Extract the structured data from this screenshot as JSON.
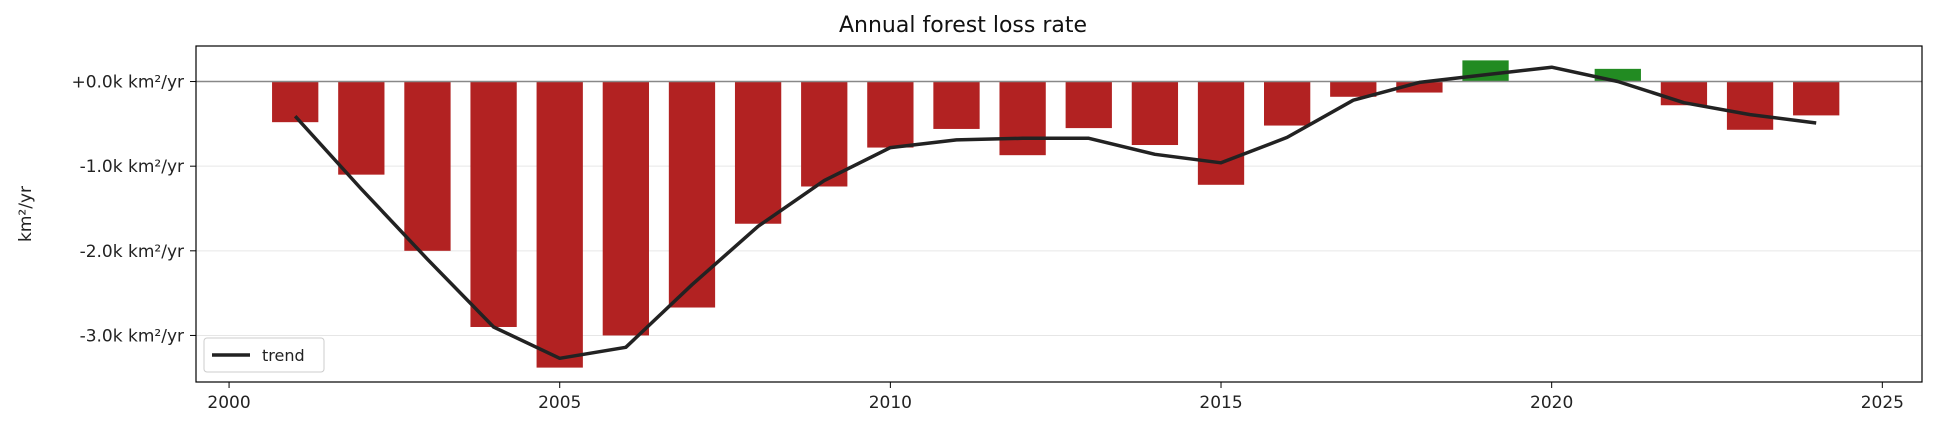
{
  "chart_data": {
    "type": "bar",
    "title": "Annual forest loss rate",
    "xlabel": "",
    "ylabel": "km²/yr",
    "xlim": [
      1999.5,
      2025.6
    ],
    "ylim": [
      -3.55,
      0.42
    ],
    "grid": true,
    "legend_placement": "bottom-left",
    "x_ticks": [
      2000,
      2005,
      2010,
      2015,
      2020,
      2025
    ],
    "y_ticks": [
      {
        "value": 0,
        "label": "+0.0k km²/yr"
      },
      {
        "value": -1,
        "label": "-1.0k km²/yr"
      },
      {
        "value": -2,
        "label": "-2.0k km²/yr"
      },
      {
        "value": -3,
        "label": "-3.0k km²/yr"
      }
    ],
    "colors": {
      "negative": "#b22222",
      "positive": "#228b22",
      "trend": "#222222",
      "zero_line": "#888888"
    },
    "x": [
      2001,
      2002,
      2003,
      2004,
      2005,
      2006,
      2007,
      2008,
      2009,
      2010,
      2011,
      2012,
      2013,
      2014,
      2015,
      2016,
      2017,
      2018,
      2019,
      2020,
      2021,
      2022,
      2023,
      2024
    ],
    "series": [
      {
        "type": "bar",
        "values": [
          -0.48,
          -1.1,
          -2.0,
          -2.9,
          -3.38,
          -3.0,
          -2.67,
          -1.68,
          -1.24,
          -0.78,
          -0.56,
          -0.87,
          -0.55,
          -0.75,
          -1.22,
          -0.52,
          -0.18,
          -0.13,
          0.25,
          0.0,
          0.15,
          -0.28,
          -0.57,
          -0.4
        ]
      },
      {
        "name": "trend",
        "type": "line",
        "values": [
          -0.41,
          -1.27,
          -2.1,
          -2.9,
          -3.27,
          -3.14,
          -2.4,
          -1.71,
          -1.17,
          -0.78,
          -0.69,
          -0.67,
          -0.67,
          -0.86,
          -0.96,
          -0.66,
          -0.22,
          -0.01,
          0.08,
          0.17,
          0.0,
          -0.25,
          -0.39,
          -0.49
        ]
      }
    ]
  }
}
